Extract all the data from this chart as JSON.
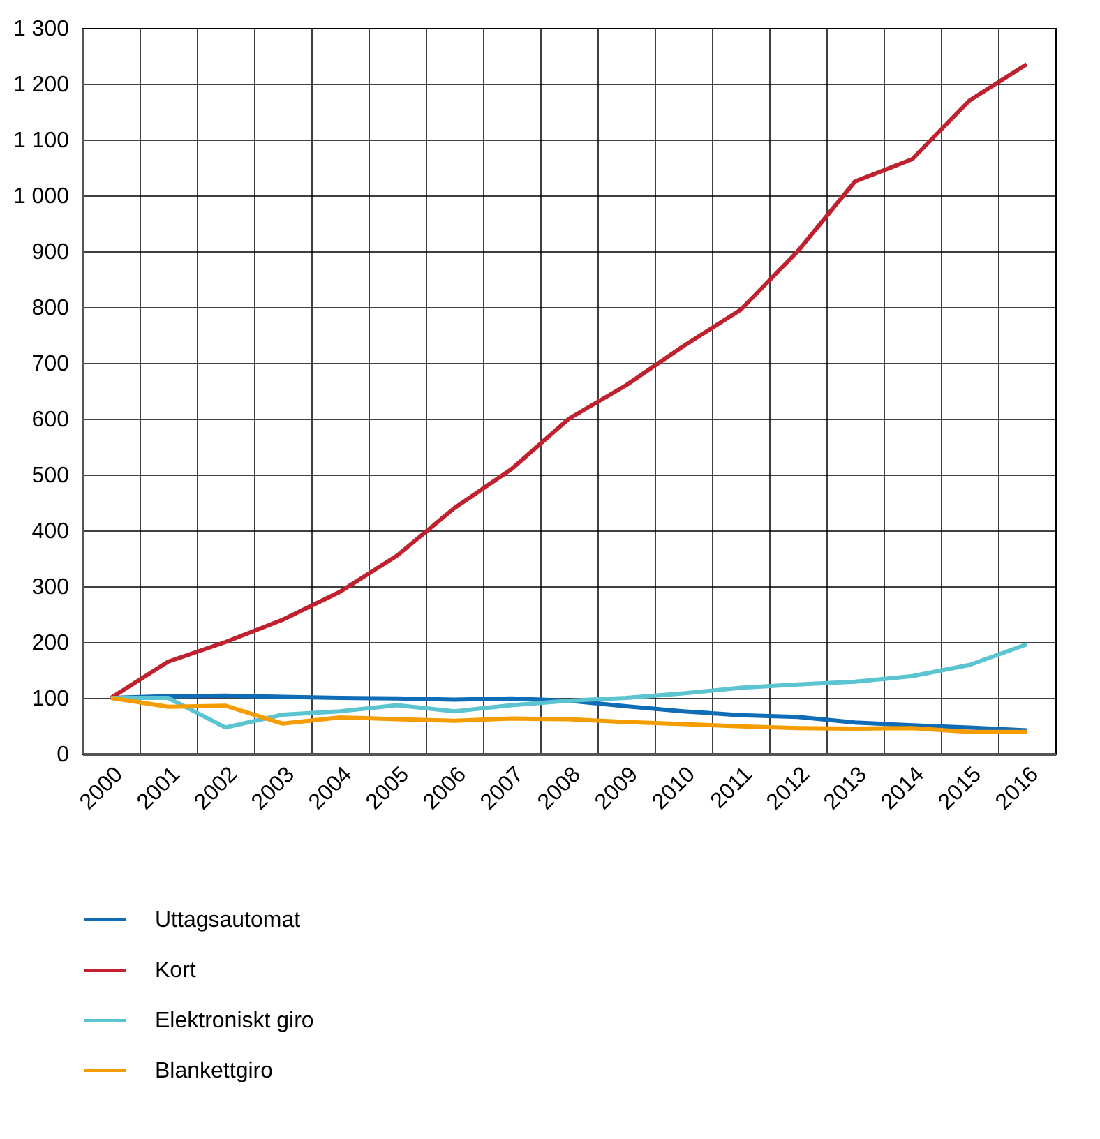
{
  "chart_data": {
    "type": "line",
    "categories": [
      "2000",
      "2001",
      "2002",
      "2003",
      "2004",
      "2005",
      "2006",
      "2007",
      "2008",
      "2009",
      "2010",
      "2011",
      "2012",
      "2013",
      "2014",
      "2015",
      "2016"
    ],
    "series": [
      {
        "name": "Uttagsautomat",
        "color": "#0f6cb6",
        "values": [
          100,
          103,
          104,
          102,
          100,
          99,
          97,
          99,
          95,
          85,
          76,
          69,
          66,
          56,
          51,
          47,
          42
        ]
      },
      {
        "name": "Kort",
        "color": "#c0212f",
        "values": [
          100,
          165,
          200,
          240,
          290,
          355,
          440,
          510,
          600,
          660,
          730,
          795,
          900,
          1025,
          1065,
          1170,
          1235
        ]
      },
      {
        "name": "Elektroniskt giro",
        "color": "#5bc4d1",
        "values": [
          100,
          100,
          47,
          70,
          76,
          87,
          76,
          87,
          95,
          100,
          108,
          118,
          124,
          129,
          139,
          159,
          196
        ]
      },
      {
        "name": "Blankettgiro",
        "color": "#f59c00",
        "values": [
          100,
          84,
          86,
          54,
          65,
          62,
          59,
          63,
          62,
          57,
          53,
          49,
          46,
          45,
          46,
          39,
          39
        ]
      }
    ],
    "ylim": [
      0,
      1300
    ],
    "yticks": [
      0,
      100,
      200,
      300,
      400,
      500,
      600,
      700,
      800,
      900,
      1000,
      1100,
      1200,
      1300
    ],
    "grid": true,
    "legend": "bottom",
    "line_style": "solid",
    "marker": "none"
  }
}
